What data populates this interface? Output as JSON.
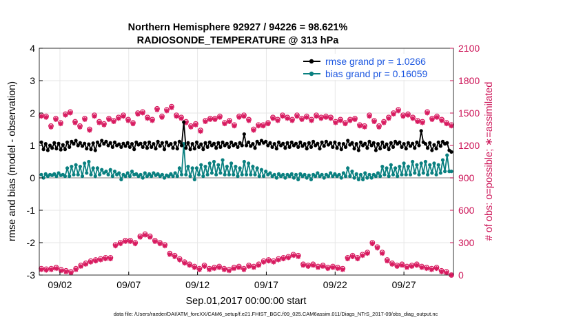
{
  "chart_data": {
    "type": "line",
    "title_line1": "Northern Hemisphere 92927 / 94226 = 98.621%",
    "title_line2": "RADIOSONDE_TEMPERATURE @ 313 hPa",
    "xlabel": "Sep.01,2017 00:00:00 start",
    "ylabel_left": "rmse and bias (model - observation)",
    "ylabel_right": "# of obs: o=possible; ∗=assimilated",
    "xlim": [
      0.5,
      30.6
    ],
    "ylim_left": [
      -3,
      4
    ],
    "ylim_right": [
      0,
      2100
    ],
    "x_ticks": [
      2,
      7,
      12,
      17,
      22,
      27
    ],
    "x_tick_labels": [
      "09/02",
      "09/07",
      "09/12",
      "09/17",
      "09/22",
      "09/27"
    ],
    "y_ticks_left": [
      "-3",
      "-2",
      "-1",
      "0",
      "1",
      "2",
      "3",
      "4"
    ],
    "y_ticks_right": [
      "0",
      "300",
      "600",
      "900",
      "1200",
      "1500",
      "1800",
      "2100"
    ],
    "legend": [
      {
        "name": "rmse grand pr = 1.0266",
        "color": "#000000"
      },
      {
        "name": "bias grand pr = 0.16059",
        "color": "#0a8080"
      }
    ],
    "footer": "data file: /Users/raeder/DAI/ATM_forcXX/CAM6_setup/f.e21.FHIST_BGC.f09_025.CAM6assim.011/Diags_NTrS_2017-09/obs_diag_output.nc",
    "rmse": [
      1.1,
      0.88,
      1.05,
      0.85,
      1.0,
      0.92,
      1.08,
      0.9,
      1.06,
      0.87,
      1.02,
      0.88,
      1.1,
      0.95,
      1.12,
      1.05,
      1.15,
      1.0,
      1.08,
      0.98,
      1.06,
      0.9,
      1.04,
      0.88,
      1.07,
      0.85,
      1.1,
      1.0,
      1.15,
      1.05,
      1.12,
      1.0,
      1.08,
      0.95,
      1.1,
      1.0,
      1.04,
      0.95,
      1.06,
      0.98,
      1.08,
      0.95,
      1.05,
      0.88,
      1.1,
      1.02,
      1.06,
      0.95,
      1.08,
      0.92,
      1.1,
      0.95,
      1.05,
      0.9,
      1.12,
      0.98,
      1.08,
      0.88,
      1.1,
      1.0,
      1.05,
      0.92,
      1.08,
      0.9,
      1.12,
      1.0,
      1.72,
      0.92,
      1.08,
      0.88,
      1.05,
      0.9,
      1.1,
      0.95,
      1.04,
      0.88,
      1.08,
      0.95,
      1.1,
      1.0,
      1.06,
      0.92,
      1.08,
      0.95,
      1.1,
      1.0,
      1.06,
      0.95,
      1.1,
      1.0,
      1.05,
      0.95,
      1.08,
      1.0,
      1.35,
      1.0,
      1.1,
      0.98,
      1.05,
      0.92,
      1.12,
      1.05,
      1.15,
      1.08,
      1.12,
      1.0,
      1.08,
      0.95,
      1.05,
      0.9,
      1.1,
      1.0,
      1.06,
      0.92,
      1.08,
      0.95,
      1.1,
      1.0,
      1.06,
      0.95,
      1.1,
      0.98,
      1.05,
      0.9,
      1.08,
      0.95,
      1.12,
      1.0,
      1.06,
      0.9,
      1.1,
      0.98,
      1.12,
      1.02,
      1.08,
      0.95,
      1.1,
      0.92,
      1.06,
      0.88,
      1.05,
      0.95,
      1.15,
      1.02,
      1.08,
      0.9,
      1.05,
      0.85,
      1.1,
      1.0,
      1.06,
      0.92,
      1.12,
      1.0,
      1.08,
      0.85,
      1.05,
      0.9,
      1.1,
      0.95,
      1.04,
      0.88,
      1.08,
      0.95,
      1.12,
      1.05,
      1.1,
      0.95,
      1.05,
      0.9,
      1.08,
      0.98,
      1.06,
      0.92,
      1.1,
      1.0,
      1.45,
      1.1,
      1.05,
      0.92,
      1.08,
      0.85,
      1.02,
      0.9,
      1.1,
      0.98,
      1.12,
      1.05,
      1.08,
      0.85,
      0.8
    ],
    "bias": [
      0.1,
      0.0,
      0.12,
      0.05,
      0.1,
      0.08,
      0.12,
      0.05,
      0.15,
      0.08,
      0.1,
      0.05,
      0.3,
      0.05,
      0.35,
      0.1,
      0.4,
      0.1,
      0.35,
      0.05,
      0.45,
      0.15,
      0.5,
      0.1,
      0.3,
      0.05,
      0.3,
      0.1,
      0.25,
      0.15,
      0.2,
      0.1,
      0.25,
      0.05,
      0.2,
      0.1,
      0.15,
      -0.05,
      0.1,
      0.05,
      0.15,
      0.05,
      0.2,
      0.1,
      0.12,
      0.05,
      0.1,
      0.0,
      0.15,
      0.05,
      0.12,
      0.05,
      0.15,
      0.08,
      0.12,
      0.05,
      0.1,
      0.0,
      0.08,
      0.05,
      0.12,
      0.05,
      0.15,
      0.05,
      0.3,
      0.1,
      1.05,
      0.1,
      0.35,
      0.05,
      0.3,
      -0.05,
      0.3,
      0.1,
      0.4,
      0.05,
      0.35,
      0.1,
      0.45,
      0.15,
      0.5,
      0.1,
      0.4,
      0.15,
      0.55,
      0.1,
      0.35,
      0.1,
      0.45,
      0.1,
      0.35,
      0.05,
      0.3,
      0.1,
      0.5,
      0.1,
      0.45,
      0.1,
      0.35,
      0.1,
      0.3,
      0.05,
      0.25,
      0.05,
      0.2,
      0.1,
      0.15,
      0.05,
      0.1,
      0.0,
      0.12,
      0.05,
      0.1,
      0.0,
      0.1,
      0.05,
      0.12,
      0.0,
      0.1,
      -0.05,
      0.12,
      0.05,
      0.1,
      0.0,
      0.08,
      -0.05,
      0.1,
      0.05,
      0.15,
      0.05,
      0.1,
      0.0,
      0.1,
      0.05,
      0.15,
      0.05,
      0.12,
      0.05,
      0.1,
      0.0,
      0.15,
      0.05,
      0.3,
      0.05,
      0.2,
      0.0,
      0.12,
      -0.05,
      0.1,
      -0.05,
      0.15,
      0.0,
      0.1,
      0.0,
      0.1,
      0.05,
      0.15,
      0.05,
      0.35,
      0.1,
      0.3,
      0.05,
      0.4,
      0.1,
      0.3,
      0.05,
      0.35,
      0.1,
      0.45,
      0.1,
      0.35,
      0.1,
      0.5,
      0.15,
      0.4,
      0.1,
      0.45,
      0.15,
      0.5,
      0.1,
      0.4,
      0.15,
      0.45,
      0.1,
      0.4,
      0.15,
      0.55,
      0.2,
      0.7,
      0.2,
      0.2
    ],
    "n_possible": [
      1480,
      1470,
      1380,
      1450,
      1410,
      1490,
      1510,
      1420,
      1380,
      1450,
      1350,
      1480,
      1420,
      1400,
      1450,
      1430,
      1460,
      1480,
      1440,
      1410,
      1500,
      1510,
      1460,
      1440,
      1540,
      1470,
      1530,
      1560,
      1480,
      1460,
      1420,
      1380,
      1400,
      1340,
      1430,
      1450,
      1450,
      1470,
      1410,
      1430,
      1390,
      1470,
      1480,
      1440,
      1350,
      1390,
      1390,
      1410,
      1460,
      1440,
      1480,
      1460,
      1440,
      1480,
      1450,
      1470,
      1440,
      1480,
      1460,
      1470,
      1460,
      1420,
      1440,
      1410,
      1440,
      1450,
      1390,
      1380,
      1480,
      1430,
      1380,
      1420,
      1460,
      1500,
      1530,
      1480,
      1490,
      1460,
      1430,
      1420,
      1510,
      1450,
      1470,
      1440,
      1410,
      1390
    ],
    "n_assimilated": [
      1470,
      1460,
      1370,
      1440,
      1400,
      1480,
      1500,
      1410,
      1370,
      1440,
      1340,
      1470,
      1410,
      1390,
      1440,
      1420,
      1450,
      1470,
      1430,
      1400,
      1490,
      1500,
      1450,
      1430,
      1530,
      1460,
      1520,
      1550,
      1470,
      1450,
      1410,
      1370,
      1390,
      1330,
      1420,
      1440,
      1440,
      1460,
      1400,
      1420,
      1380,
      1460,
      1470,
      1430,
      1340,
      1380,
      1380,
      1400,
      1450,
      1430,
      1470,
      1450,
      1430,
      1470,
      1440,
      1460,
      1430,
      1470,
      1450,
      1460,
      1450,
      1410,
      1430,
      1400,
      1430,
      1440,
      1380,
      1370,
      1470,
      1420,
      1370,
      1410,
      1450,
      1490,
      1520,
      1470,
      1480,
      1450,
      1420,
      1410,
      1500,
      1440,
      1460,
      1430,
      1400,
      1380
    ],
    "n_low_possible": [
      60,
      55,
      60,
      70,
      50,
      40,
      30,
      60,
      90,
      110,
      130,
      140,
      150,
      160,
      160,
      280,
      300,
      320,
      320,
      300,
      360,
      380,
      360,
      320,
      300,
      280,
      200,
      180,
      150,
      120,
      100,
      80,
      60,
      90,
      60,
      70,
      80,
      60,
      50,
      70,
      80,
      60,
      90,
      80,
      100,
      130,
      140,
      130,
      150,
      160,
      170,
      190,
      180,
      100,
      90,
      100,
      80,
      90,
      70,
      80,
      70,
      60,
      160,
      180,
      160,
      190,
      210,
      300,
      260,
      210,
      140,
      110,
      90,
      100,
      80,
      90,
      100,
      80,
      70,
      60,
      70,
      40,
      30,
      0
    ],
    "n_low_assimilated": [
      50,
      45,
      50,
      60,
      40,
      30,
      20,
      50,
      80,
      100,
      120,
      130,
      140,
      150,
      150,
      270,
      290,
      310,
      310,
      290,
      350,
      370,
      350,
      310,
      290,
      270,
      190,
      170,
      140,
      110,
      90,
      70,
      50,
      80,
      50,
      60,
      70,
      50,
      40,
      60,
      70,
      50,
      80,
      70,
      90,
      120,
      130,
      120,
      140,
      150,
      160,
      180,
      170,
      90,
      80,
      90,
      70,
      80,
      60,
      70,
      60,
      50,
      150,
      170,
      150,
      180,
      200,
      290,
      250,
      200,
      130,
      100,
      80,
      90,
      70,
      80,
      90,
      70,
      60,
      50,
      60,
      30,
      20,
      0
    ]
  }
}
